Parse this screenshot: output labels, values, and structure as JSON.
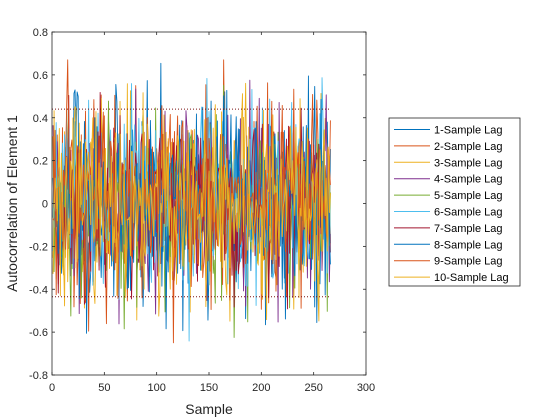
{
  "chart_data": {
    "type": "line",
    "xlabel": "Sample",
    "ylabel": "Autocorrelation of Element 1",
    "xlim": [
      0,
      300
    ],
    "ylim": [
      -0.8,
      0.8
    ],
    "xticks": [
      "0",
      "50",
      "100",
      "150",
      "200",
      "250",
      "300"
    ],
    "yticks": [
      "-0.8",
      "-0.6",
      "-0.4",
      "-0.2",
      "0",
      "0.2",
      "0.4",
      "0.6",
      "0.8"
    ],
    "grid": false,
    "legend_position": "outside-right",
    "confidence_bounds": [
      0.44,
      -0.435
    ],
    "n_samples": 266,
    "series": [
      {
        "name": "1-Sample Lag",
        "color": "#0072BD",
        "amplitude": 0.24,
        "seed": 11
      },
      {
        "name": "2-Sample Lag",
        "color": "#D95319",
        "amplitude": 0.22,
        "seed": 23
      },
      {
        "name": "3-Sample Lag",
        "color": "#EDB120",
        "amplitude": 0.23,
        "seed": 37
      },
      {
        "name": "4-Sample Lag",
        "color": "#7E2F8E",
        "amplitude": 0.22,
        "seed": 41
      },
      {
        "name": "5-Sample Lag",
        "color": "#77AC30",
        "amplitude": 0.22,
        "seed": 53
      },
      {
        "name": "6-Sample Lag",
        "color": "#4DBEEE",
        "amplitude": 0.22,
        "seed": 67
      },
      {
        "name": "7-Sample Lag",
        "color": "#A2142F",
        "amplitude": 0.22,
        "seed": 71
      },
      {
        "name": "8-Sample Lag",
        "color": "#0072BD",
        "amplitude": 0.21,
        "seed": 83
      },
      {
        "name": "9-Sample Lag",
        "color": "#D95319",
        "amplitude": 0.22,
        "seed": 97
      },
      {
        "name": "10-Sample Lag",
        "color": "#EDB120",
        "amplitude": 0.22,
        "seed": 101
      }
    ]
  }
}
